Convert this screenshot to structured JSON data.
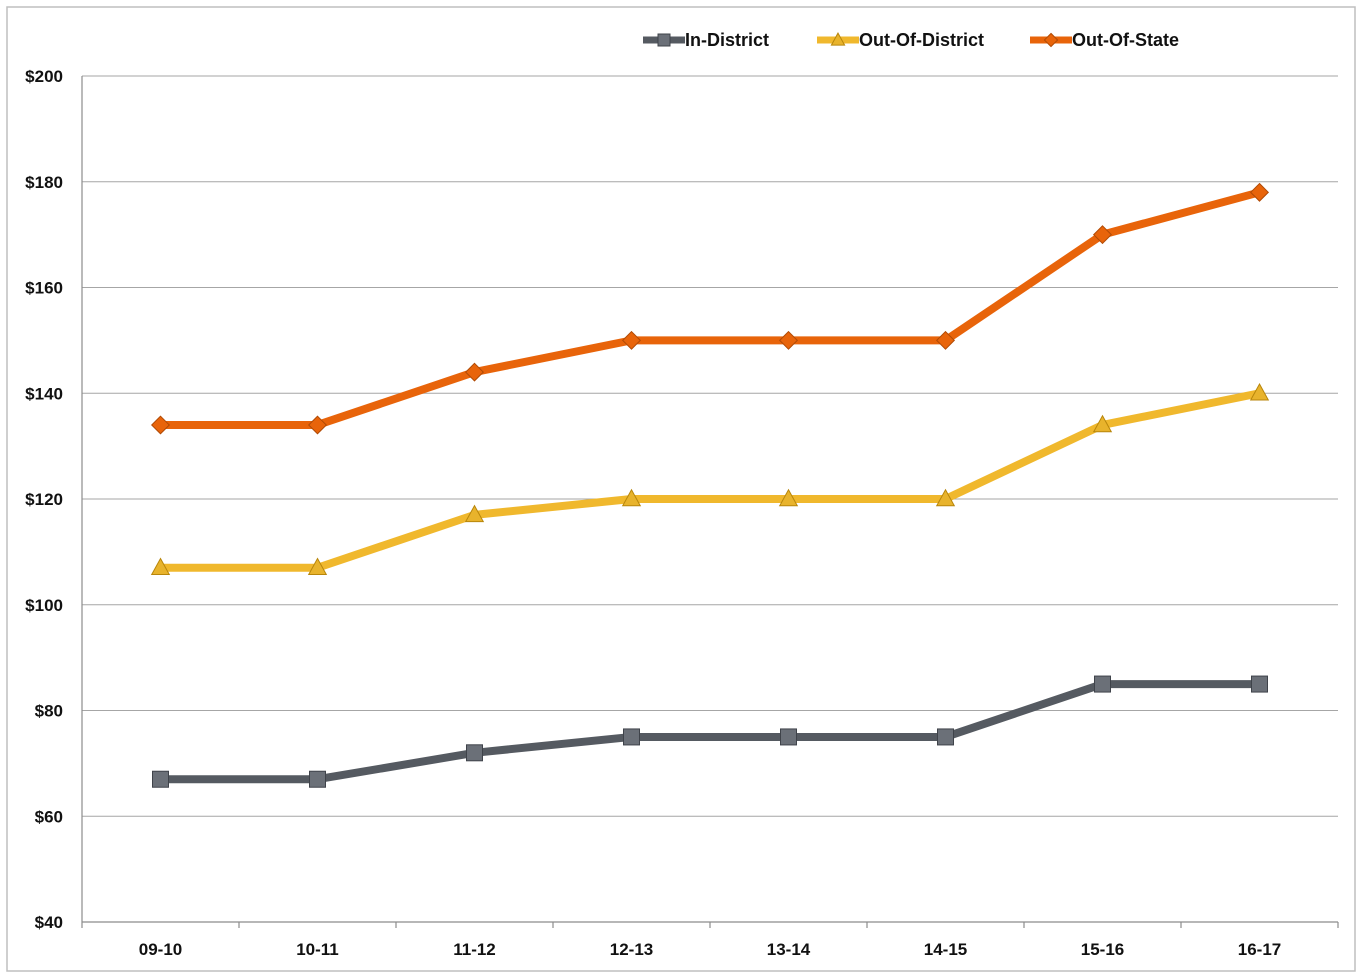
{
  "chart_data": {
    "type": "line",
    "title": "",
    "xlabel": "",
    "ylabel": "",
    "categories": [
      "09-10",
      "10-11",
      "11-12",
      "12-13",
      "13-14",
      "14-15",
      "15-16",
      "16-17"
    ],
    "ylim": [
      40,
      200
    ],
    "yticks": [
      40,
      60,
      80,
      100,
      120,
      140,
      160,
      180,
      200
    ],
    "ytick_labels": [
      "$40",
      "$60",
      "$80",
      "$100",
      "$120",
      "$140",
      "$160",
      "$180",
      "$200"
    ],
    "grid": true,
    "legend_position": "top-right",
    "series": [
      {
        "name": "In-District",
        "values": [
          67,
          67,
          72,
          75,
          75,
          75,
          85,
          85
        ],
        "color": "#555a61",
        "marker": "square",
        "marker_color": "#6b7078"
      },
      {
        "name": "Out-Of-District",
        "values": [
          107,
          107,
          117,
          120,
          120,
          120,
          134,
          140
        ],
        "color": "#f0b82d",
        "marker": "triangle",
        "marker_color": "#e8b32c"
      },
      {
        "name": "Out-Of-State",
        "values": [
          134,
          134,
          144,
          150,
          150,
          150,
          170,
          178
        ],
        "color": "#e8640a",
        "marker": "diamond",
        "marker_color": "#e8640a"
      }
    ]
  }
}
